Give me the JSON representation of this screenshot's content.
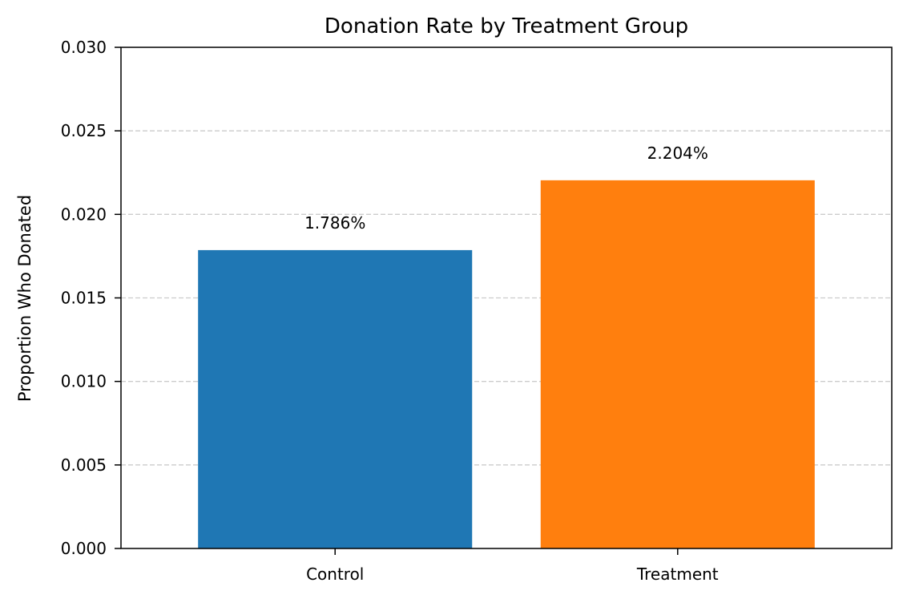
{
  "chart_data": {
    "type": "bar",
    "title": "Donation Rate by Treatment Group",
    "xlabel": "",
    "ylabel": "Proportion Who Donated",
    "categories": [
      "Control",
      "Treatment"
    ],
    "values": [
      0.01786,
      0.02204
    ],
    "data_labels": [
      "1.786%",
      "2.204%"
    ],
    "colors": [
      "#1f77b4",
      "#ff7f0e"
    ],
    "ylim": [
      0,
      0.03
    ],
    "yticks": [
      0,
      0.005,
      0.01,
      0.015,
      0.02,
      0.025,
      0.03
    ],
    "ytick_labels": [
      "0.000",
      "0.005",
      "0.010",
      "0.015",
      "0.020",
      "0.025",
      "0.030"
    ],
    "grid": "y-dashed",
    "legend": "none"
  }
}
